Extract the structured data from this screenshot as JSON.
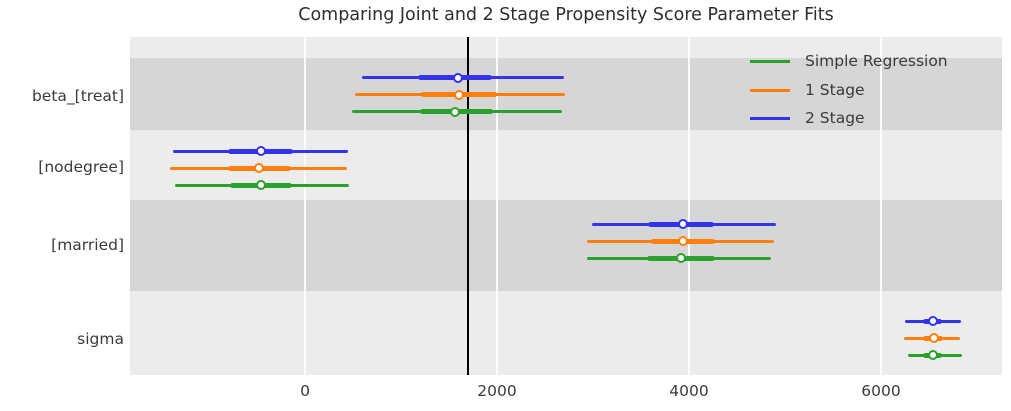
{
  "chart_data": {
    "type": "forest",
    "title": "Comparing Joint and 2 Stage Propensity Score Parameter Fits",
    "categories": [
      "beta_[treat]",
      "[nodegree]",
      "[married]",
      "sigma"
    ],
    "xlabel": "",
    "ylabel": "",
    "xlim": [
      -1823,
      7260
    ],
    "x_ticks": [
      {
        "label": "0",
        "value": 0
      },
      {
        "label": "2000",
        "value": 2000
      },
      {
        "label": "4000",
        "value": 4000
      },
      {
        "label": "6000",
        "value": 6000
      }
    ],
    "reference_line_x": 1697,
    "grid": "vertical-white-gridlines",
    "legend_position": "upper-right",
    "marker_style": "open-circle-white-fill",
    "series": [
      {
        "name": "Simple Regression",
        "color": "#2ca02c",
        "intervals": [
          {
            "category": "beta_[treat]",
            "lo": 490,
            "q1": 1200,
            "median": 1565,
            "q3": 1960,
            "hi": 2680
          },
          {
            "category": "[nodegree]",
            "lo": -1355,
            "q1": -780,
            "median": -460,
            "q3": -135,
            "hi": 455
          },
          {
            "category": "[married]",
            "lo": 2940,
            "q1": 3565,
            "median": 3915,
            "q3": 4270,
            "hi": 4855
          },
          {
            "category": "sigma",
            "lo": 6280,
            "q1": 6440,
            "median": 6540,
            "q3": 6635,
            "hi": 6845
          }
        ]
      },
      {
        "name": "1 Stage",
        "color": "#ff7f0e",
        "intervals": [
          {
            "category": "beta_[treat]",
            "lo": 520,
            "q1": 1210,
            "median": 1600,
            "q3": 2000,
            "hi": 2710
          },
          {
            "category": "[nodegree]",
            "lo": -1405,
            "q1": -800,
            "median": -480,
            "q3": -145,
            "hi": 440
          },
          {
            "category": "[married]",
            "lo": 2940,
            "q1": 3600,
            "median": 3940,
            "q3": 4270,
            "hi": 4885
          },
          {
            "category": "sigma",
            "lo": 6240,
            "q1": 6440,
            "median": 6550,
            "q3": 6645,
            "hi": 6825
          }
        ]
      },
      {
        "name": "2 Stage",
        "color": "#3333ee",
        "intervals": [
          {
            "category": "beta_[treat]",
            "lo": 590,
            "q1": 1180,
            "median": 1590,
            "q3": 1950,
            "hi": 2700
          },
          {
            "category": "[nodegree]",
            "lo": -1375,
            "q1": -800,
            "median": -460,
            "q3": -125,
            "hi": 450
          },
          {
            "category": "[married]",
            "lo": 2990,
            "q1": 3570,
            "median": 3940,
            "q3": 4260,
            "hi": 4905
          },
          {
            "category": "sigma",
            "lo": 6250,
            "q1": 6440,
            "median": 6540,
            "q3": 6635,
            "hi": 6835
          }
        ]
      }
    ],
    "colors": {
      "figure_background": "#ffffff",
      "band_light": "#ececec",
      "band_dark": "#d6d6d6",
      "gridline": "#ffffff",
      "reference_line": "#000000",
      "text": "#3b3b3b",
      "title_text": "#2e2e2e",
      "marker_fill": "#ffffff"
    }
  }
}
